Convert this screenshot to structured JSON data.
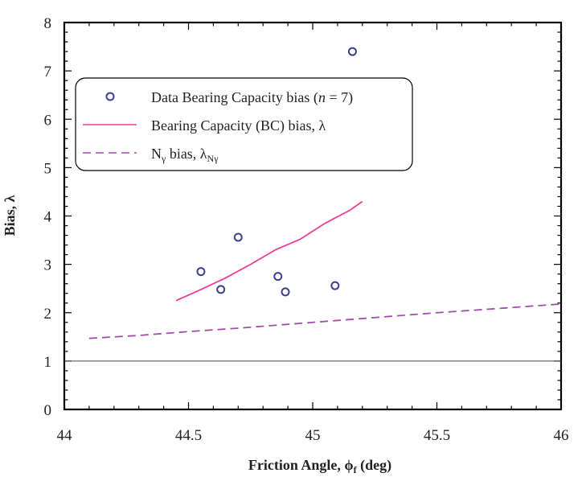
{
  "chart_data": {
    "type": "scatter",
    "title": "",
    "xlabel": "Friction Angle, ϕf (deg)",
    "ylabel": "Bias, λ",
    "xlim": [
      44,
      46
    ],
    "ylim": [
      0,
      8
    ],
    "x_ticks": [
      44,
      44.5,
      45,
      45.5,
      46
    ],
    "x_tick_labels": [
      "44",
      "44.5",
      "45",
      "45.5",
      "46"
    ],
    "y_ticks": [
      0,
      1,
      2,
      3,
      4,
      5,
      6,
      7,
      8
    ],
    "y_tick_labels": [
      "0",
      "1",
      "2",
      "3",
      "4",
      "5",
      "6",
      "7",
      "8"
    ],
    "grid": false,
    "legend_position": "top-left",
    "reference_line": {
      "y": 1
    },
    "series": [
      {
        "name": "Data Bearing Capacity bias (n = 7)",
        "kind": "markers",
        "marker": "circle-open",
        "color": "#3a3f8f",
        "points": [
          {
            "x": 44.55,
            "y": 2.85
          },
          {
            "x": 44.63,
            "y": 2.48
          },
          {
            "x": 44.7,
            "y": 3.56
          },
          {
            "x": 44.86,
            "y": 2.75
          },
          {
            "x": 44.89,
            "y": 2.43
          },
          {
            "x": 45.09,
            "y": 2.56
          },
          {
            "x": 45.16,
            "y": 7.4
          }
        ]
      },
      {
        "name": "Bearing Capacity (BC) bias, λ",
        "kind": "line",
        "style": "solid",
        "color": "#ee3c9a",
        "points": [
          {
            "x": 44.45,
            "y": 2.25
          },
          {
            "x": 44.55,
            "y": 2.48
          },
          {
            "x": 44.65,
            "y": 2.72
          },
          {
            "x": 44.75,
            "y": 3.0
          },
          {
            "x": 44.85,
            "y": 3.3
          },
          {
            "x": 44.95,
            "y": 3.52
          },
          {
            "x": 45.05,
            "y": 3.85
          },
          {
            "x": 45.15,
            "y": 4.12
          },
          {
            "x": 45.2,
            "y": 4.3
          }
        ]
      },
      {
        "name": "Nγ bias, λNγ",
        "kind": "line",
        "style": "dashed",
        "color": "#a24cae",
        "points": [
          {
            "x": 44.1,
            "y": 1.47
          },
          {
            "x": 44.3,
            "y": 1.53
          },
          {
            "x": 44.5,
            "y": 1.61
          },
          {
            "x": 44.7,
            "y": 1.68
          },
          {
            "x": 44.9,
            "y": 1.76
          },
          {
            "x": 45.1,
            "y": 1.84
          },
          {
            "x": 45.3,
            "y": 1.92
          },
          {
            "x": 45.5,
            "y": 2.0
          },
          {
            "x": 45.7,
            "y": 2.07
          },
          {
            "x": 46.0,
            "y": 2.18
          }
        ]
      }
    ],
    "legend": {
      "entries": [
        {
          "marker": "circle-open",
          "color": "#3a3f8f",
          "text_pre": "Data Bearing Capacity bias (",
          "text_italic": "n",
          "text_post": " = 7)"
        },
        {
          "marker": "solid-line",
          "color": "#ee3c9a",
          "text": "Bearing Capacity (BC) bias, λ"
        },
        {
          "marker": "dashed-line",
          "color": "#a24cae",
          "text_n": "N",
          "text_n_sub": "γ",
          "text_mid": " bias, λ",
          "text_mid_sub": "Nγ"
        }
      ]
    },
    "xlabel_parts": {
      "pre": "Friction Angle, ",
      "phi": "ϕ",
      "sub": "f",
      "post": " (deg)"
    }
  }
}
